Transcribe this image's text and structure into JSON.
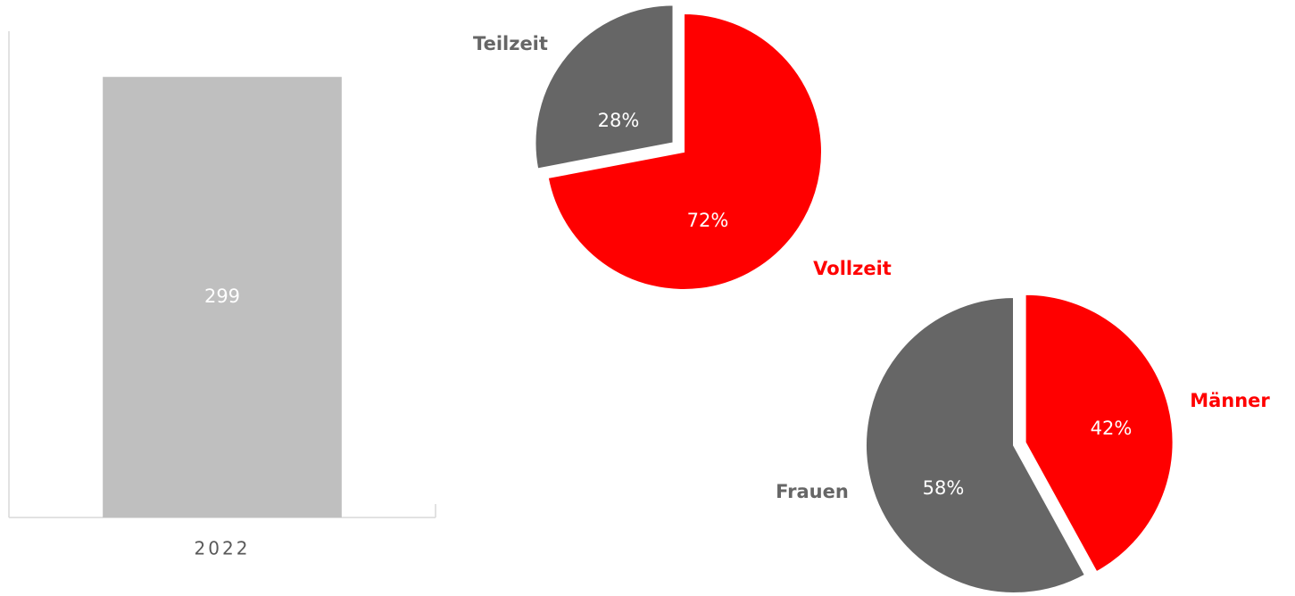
{
  "chart_data": [
    {
      "type": "bar",
      "categories": [
        "2022"
      ],
      "values": [
        299
      ],
      "color": "#bfbfbf",
      "ylim": [
        0,
        330
      ]
    },
    {
      "type": "pie",
      "categories": [
        "Vollzeit",
        "Teilzeit"
      ],
      "values": [
        72,
        28
      ],
      "value_labels": [
        "72%",
        "28%"
      ],
      "colors": [
        "#ff0000",
        "#666666"
      ]
    },
    {
      "type": "pie",
      "categories": [
        "Männer",
        "Frauen"
      ],
      "values": [
        42,
        58
      ],
      "value_labels": [
        "42%",
        "58%"
      ],
      "colors": [
        "#ff0000",
        "#666666"
      ]
    }
  ]
}
